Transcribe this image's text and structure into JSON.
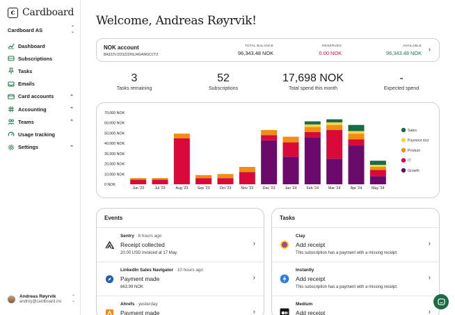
{
  "brand": {
    "name": "Cardboard",
    "logo_letter": "c"
  },
  "org": {
    "name": "Cardboard AS"
  },
  "nav": [
    {
      "label": "Dashboard",
      "icon": "chart-line-icon",
      "expandable": false
    },
    {
      "label": "Subscriptions",
      "icon": "inbox-icon",
      "expandable": false
    },
    {
      "label": "Tasks",
      "icon": "pin-icon",
      "expandable": false
    },
    {
      "label": "Emails",
      "icon": "mailbox-icon",
      "expandable": false
    },
    {
      "label": "Card accounts",
      "icon": "card-icon",
      "expandable": true
    },
    {
      "label": "Accounting",
      "icon": "grid-icon",
      "expandable": true
    },
    {
      "label": "Teams",
      "icon": "users-icon",
      "expandable": true
    },
    {
      "label": "Usage tracking",
      "icon": "gauge-icon",
      "expandable": false
    },
    {
      "label": "Settings",
      "icon": "gear-icon",
      "expandable": true
    }
  ],
  "user": {
    "name": "Andreas Røyrvik",
    "email": "androy@cardboard.inc"
  },
  "welcome": "Welcome, Andreas Røyrvik!",
  "account": {
    "name": "NOK account",
    "iban": "BA322VJ223222HSJ4G4WGCCTZ",
    "total_label": "TOTAL BALANCE",
    "total_value": "96,343.48 NOK",
    "reserved_label": "RESERVED",
    "reserved_value": "0.00 NOK",
    "available_label": "AVAILABLE",
    "available_value": "96,343.48 NOK"
  },
  "stats": [
    {
      "value": "3",
      "caption": "Tasks remaining"
    },
    {
      "value": "52",
      "caption": "Subscriptions"
    },
    {
      "value": "17,698 NOK",
      "caption": "Total spend this month"
    },
    {
      "value": "-",
      "caption": "Expected spend"
    }
  ],
  "chart_data": {
    "type": "bar",
    "stacked": true,
    "categories": [
      "Jun '23",
      "Jul '23",
      "Aug '23",
      "Sep '23",
      "Oct '23",
      "Nov '23",
      "Dec '23",
      "Jan '24",
      "Feb '24",
      "Mar '24",
      "Apr '24",
      "May '24"
    ],
    "ylim": [
      0,
      70000
    ],
    "yticks": [
      "0 NOK",
      "10,000 NOK",
      "20,000 NOK",
      "30,000 NOK",
      "40,000 NOK",
      "50,000 NOK",
      "60,000 NOK",
      "70,000 NOK"
    ],
    "legend_position": "right",
    "series": [
      {
        "name": "Growth",
        "color": "#6b0a6b",
        "values": [
          0,
          0,
          0,
          0,
          0,
          0,
          43000,
          27000,
          46000,
          25000,
          38000,
          8000
        ]
      },
      {
        "name": "IT",
        "color": "#d90a3a",
        "values": [
          4500,
          4500,
          45000,
          6000,
          6000,
          12000,
          5000,
          14000,
          5000,
          28000,
          6000,
          6000
        ]
      },
      {
        "name": "Product",
        "color": "#f28c12",
        "values": [
          1500,
          1500,
          4500,
          3000,
          4000,
          5000,
          5000,
          5500,
          5000,
          5000,
          5500,
          3000
        ]
      },
      {
        "name": "Payment test",
        "color": "#f6d54a",
        "values": [
          0,
          0,
          0,
          0,
          0,
          0,
          0,
          0,
          2500,
          2500,
          2500,
          2000
        ]
      },
      {
        "name": "Sales",
        "color": "#1a6b48",
        "values": [
          0,
          0,
          0,
          0,
          0,
          0,
          0,
          0,
          3000,
          3000,
          6000,
          4000
        ]
      }
    ]
  },
  "events": {
    "title": "Events",
    "items": [
      {
        "source": "Sentry",
        "when": "8 hours ago",
        "title": "Receipt collected",
        "sub": "20.00 USD invoiced at 17 May.",
        "icon": "sentry-icon"
      },
      {
        "source": "LinkedIn Sales Navigator",
        "when": "10 hours ago",
        "title": "Payment made",
        "sub": "863.99 NOK",
        "icon": "compass-icon"
      },
      {
        "source": "Ahrefs",
        "when": "yesterday",
        "title": "Payment made",
        "sub": "",
        "icon": "ahrefs-icon"
      }
    ]
  },
  "tasks": {
    "title": "Tasks",
    "items": [
      {
        "source": "Clay",
        "title": "Add receipt",
        "sub": "This subscription has a payment with a missing receipt.",
        "icon": "clay-icon"
      },
      {
        "source": "Instantly",
        "title": "Add receipt",
        "sub": "This subscription has a payment with a missing receipt.",
        "icon": "bolt-icon"
      },
      {
        "source": "Medium",
        "title": "Add receipt",
        "sub": "",
        "icon": "medium-icon"
      }
    ]
  },
  "colors": {
    "accent": "#1e7a4a",
    "reserved": "#d90a3a",
    "available": "#1e7a4a"
  }
}
